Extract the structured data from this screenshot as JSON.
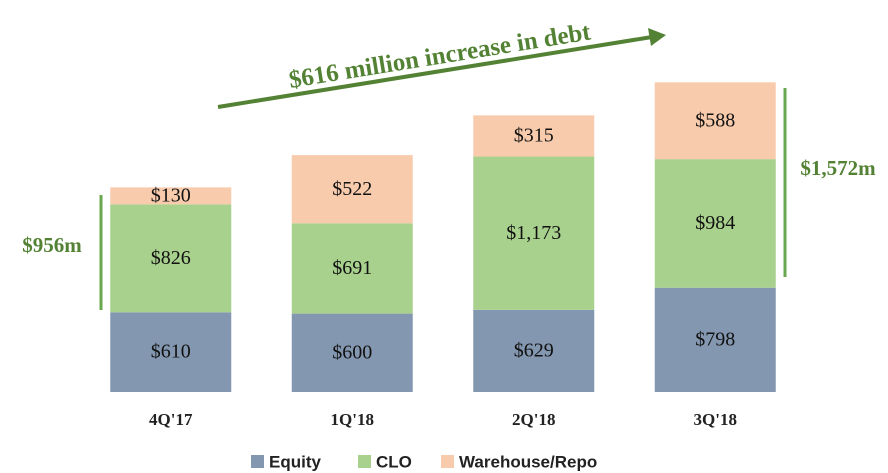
{
  "chart_data": {
    "type": "stacked_bar",
    "categories": [
      "4Q'17",
      "1Q'18",
      "2Q'18",
      "3Q'18"
    ],
    "series": [
      {
        "name": "Equity",
        "color": "#8497b0",
        "values": [
          610,
          600,
          629,
          798
        ],
        "value_labels": [
          "$610",
          "$600",
          "$629",
          "$798"
        ]
      },
      {
        "name": "CLO",
        "color": "#a9d18e",
        "values": [
          826,
          691,
          1173,
          984
        ],
        "value_labels": [
          "$826",
          "$691",
          "$1,173",
          "$984"
        ]
      },
      {
        "name": "Warehouse/Repo",
        "color": "#f8cbad",
        "values": [
          130,
          522,
          315,
          588
        ],
        "value_labels": [
          "$130",
          "$522",
          "$315",
          "$588"
        ]
      }
    ],
    "ylim": [
      0,
      3000
    ],
    "annotations": [
      "$616 million increase in debt",
      "$956m",
      "$1,572m"
    ],
    "annotation_color": "#548235"
  }
}
